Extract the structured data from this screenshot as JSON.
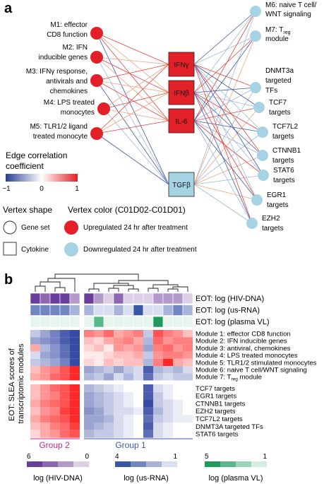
{
  "panel_a": {
    "label": "a",
    "left_modules": [
      {
        "lines": [
          "M1: effector",
          "CD8 function"
        ]
      },
      {
        "lines": [
          "M2: IFN",
          "inducible genes"
        ]
      },
      {
        "lines": [
          "M3: IFNγ response,",
          "antivirals and",
          "chemokines"
        ]
      },
      {
        "lines": [
          "M4: LPS treated",
          "monocytes"
        ]
      },
      {
        "lines": [
          "M5: TLR1/2 ligand",
          "treated monocyte"
        ]
      }
    ],
    "right_modules": [
      {
        "lines": [
          "M6: naive T cell/",
          "WNT signaling"
        ]
      },
      {
        "lines": [
          "M7: T",
          "module"
        ],
        "subscript": "reg"
      },
      {
        "lines": [
          "DNMT3a",
          "targeted",
          "TFs"
        ]
      },
      {
        "lines": [
          "TCF7",
          "targets"
        ]
      },
      {
        "lines": [
          "TCF7L2",
          "targets"
        ]
      },
      {
        "lines": [
          "CTNNB1",
          "targets"
        ]
      },
      {
        "lines": [
          "STAT6",
          "targets"
        ]
      },
      {
        "lines": [
          "EGR1",
          "targets"
        ]
      },
      {
        "lines": [
          "EZH2",
          "targets"
        ]
      }
    ],
    "cytokines": [
      "IFNγ",
      "IFNβ",
      "IL-6",
      "TGFβ"
    ],
    "edge_legend": {
      "title": [
        "Edge correlation",
        "coefficient"
      ],
      "ticks": [
        "−1",
        "0",
        "1"
      ]
    },
    "vertex_shape": {
      "title": "Vertex shape",
      "gene_set": "Gene set",
      "cytokine": "Cytokine"
    },
    "vertex_color": {
      "title": "Vertex color (C01D02-C01D01)",
      "up": "Upregulated 24 hr after treatment",
      "down": "Downregulated 24 hr after treatment"
    },
    "colors": {
      "up": "#e32027",
      "down": "#a6d3e4",
      "edge_pos": "#e1463f",
      "edge_neg": "#3f55a6",
      "edge_pos_light": "#f1a07c",
      "edge_neg_light": "#9fb8d6"
    }
  },
  "panel_b": {
    "label": "b",
    "eot_rows": [
      "EOT: log (HIV-DNA)",
      "EOT: log (us-RNA)",
      "EOT: log (plasma VL)"
    ],
    "module_rows": [
      "Module 1: effector CD8 function",
      "Module 2: IFN inducible genes",
      "Module 3: antiviral, chemokines",
      "Module 4: LPS treated monocytes",
      "Module 5: TLR1/2 stimulated monocytes",
      "Module 6: naive T cell/WNT signaling",
      "Module 7: T"
    ],
    "module7_sub": "reg",
    "module7_tail": " module",
    "target_rows": [
      "TCF7 targets",
      "EGR1 targets",
      "CTNNB1 targets",
      "EZH2 targets",
      "TCF7L2 targets",
      "DNMT3A targeted TFs",
      "STAT6 targets"
    ],
    "y_title": [
      "EOT: SLEA scores of",
      "transcriptomic modules"
    ],
    "groups": [
      {
        "name": "Group 2",
        "color": "#c2278a"
      },
      {
        "name": "Group 1",
        "color": "#3a57a7"
      }
    ],
    "legends": [
      {
        "title": "log (HIV-DNA)",
        "max": "6",
        "min": "0",
        "colors": [
          "#6a3d9a",
          "#8c68b3",
          "#b49acb",
          "#dcd0e6"
        ]
      },
      {
        "title": "log (us-RNA)",
        "max": "4",
        "min": "1",
        "colors": [
          "#3b56a5",
          "#7186c0",
          "#a7b4d8",
          "#d9dfee"
        ]
      },
      {
        "title": "log (plasma VL)",
        "max": "5",
        "min": "1",
        "colors": [
          "#1f9a5a",
          "#58b88a",
          "#9bd5b8",
          "#d4ede0"
        ]
      }
    ]
  }
}
